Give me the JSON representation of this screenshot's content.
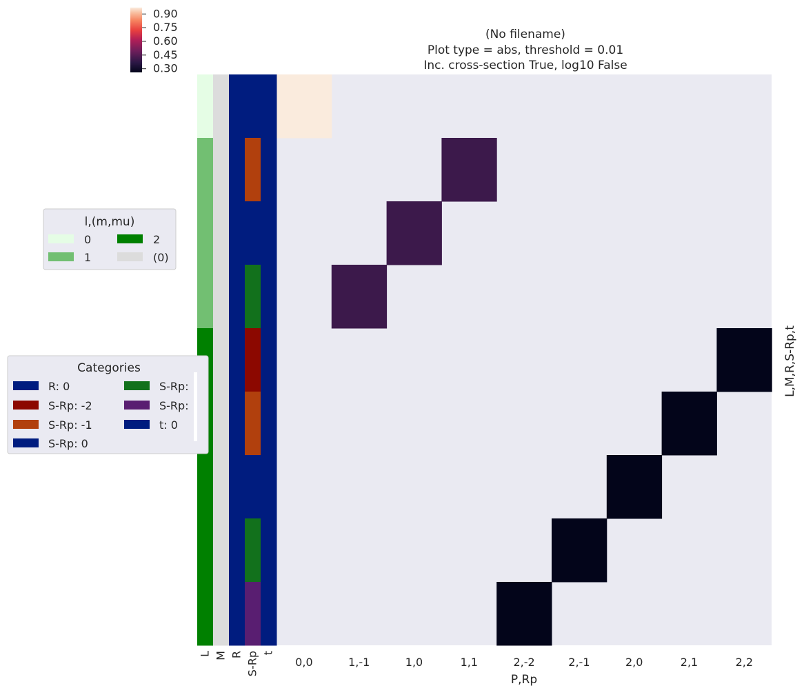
{
  "chart_data": {
    "type": "heatmap",
    "title_lines": [
      "(No filename)",
      "Plot type = abs, threshold = 0.01",
      "Inc. cross-section True, log10 False"
    ],
    "xlabel": "P,Rp",
    "ylabel": "L,M,R,S-Rp,t",
    "x_categories": [
      "0,0",
      "1,-1",
      "1,0",
      "1,1",
      "2,-2",
      "2,-1",
      "2,0",
      "2,1",
      "2,2"
    ],
    "row_count": 9,
    "cells": [
      {
        "row": 0,
        "col": 0,
        "value": 0.97
      },
      {
        "row": 1,
        "col": 3,
        "value": 0.4
      },
      {
        "row": 2,
        "col": 2,
        "value": 0.4
      },
      {
        "row": 3,
        "col": 1,
        "value": 0.4
      },
      {
        "row": 4,
        "col": 8,
        "value": 0.26
      },
      {
        "row": 5,
        "col": 7,
        "value": 0.26
      },
      {
        "row": 6,
        "col": 6,
        "value": 0.26
      },
      {
        "row": 7,
        "col": 5,
        "value": 0.26
      },
      {
        "row": 8,
        "col": 4,
        "value": 0.26
      }
    ],
    "empty_cell_color": "#eaeaf2",
    "colorbar": {
      "ticks": [
        "0.90",
        "0.75",
        "0.60",
        "0.45",
        "0.30"
      ],
      "tick_values": [
        0.9,
        0.75,
        0.6,
        0.45,
        0.3
      ],
      "range": [
        0.26,
        0.97
      ],
      "colormap": "rocket"
    },
    "row_label_columns": {
      "labels": [
        "L",
        "M",
        "R",
        "S-Rp",
        "t"
      ],
      "L": [
        0,
        1,
        1,
        1,
        2,
        2,
        2,
        2,
        2
      ],
      "M": [
        "(0)",
        "(0)",
        "(0)",
        "(0)",
        "(0)",
        "(0)",
        "(0)",
        "(0)",
        "(0)"
      ],
      "R": [
        0,
        0,
        0,
        0,
        0,
        0,
        0,
        0,
        0
      ],
      "S-Rp": [
        0,
        -1,
        0,
        1,
        -2,
        -1,
        0,
        1,
        2
      ],
      "t": [
        0,
        0,
        0,
        0,
        0,
        0,
        0,
        0,
        0
      ]
    },
    "legends": [
      {
        "title": "l,(m,mu)",
        "placement": "left",
        "entries": [
          {
            "label": "0",
            "color": "#e5fde5"
          },
          {
            "label": "2",
            "color": "#008000"
          },
          {
            "label": "1",
            "color": "#72bf72"
          },
          {
            "label": "(0)",
            "color": "#dcdcdc"
          }
        ]
      },
      {
        "title": "Categories",
        "placement": "left",
        "entries": [
          {
            "label": "R: 0",
            "color": "#001c7f"
          },
          {
            "label": "S-Rp:",
            "color": "#12711c"
          },
          {
            "label": "S-Rp: -2",
            "color": "#8c0800"
          },
          {
            "label": "S-Rp:",
            "color": "#591e71"
          },
          {
            "label": "S-Rp: -1",
            "color": "#b1400d"
          },
          {
            "label": "t: 0",
            "color": "#001c7f"
          },
          {
            "label": "S-Rp: 0",
            "color": "#001c7f"
          }
        ]
      }
    ],
    "category_colors": {
      "L": {
        "0": "#e5fde5",
        "1": "#72bf72",
        "2": "#008000"
      },
      "M": {
        "(0)": "#dcdcdc"
      },
      "R": {
        "0": "#001c7f"
      },
      "S-Rp": {
        "-2": "#8c0800",
        "-1": "#b1400d",
        "0": "#001c7f",
        "1": "#12711c",
        "2": "#591e71"
      },
      "t": {
        "0": "#001c7f"
      }
    }
  }
}
